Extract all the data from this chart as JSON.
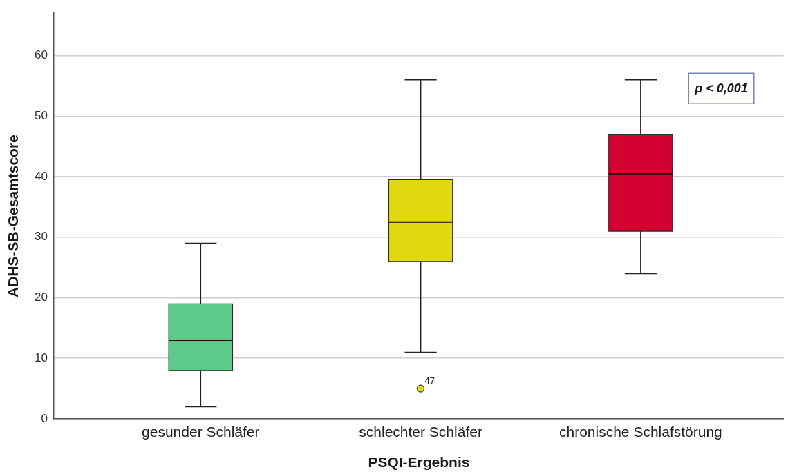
{
  "chart_data": {
    "type": "box",
    "xlabel": "PSQI-Ergebnis",
    "ylabel": "ADHS-SB-Gesamtscore",
    "categories": [
      "gesunder Schläfer",
      "schlechter Schläfer",
      "chronische Schlafstörung"
    ],
    "boxes": [
      {
        "low": 2,
        "q1": 8,
        "median": 13,
        "q3": 19,
        "high": 29
      },
      {
        "low": 11,
        "q1": 26,
        "median": 32.5,
        "q3": 39.5,
        "high": 56,
        "outliers": [
          5
        ]
      },
      {
        "low": 24,
        "q1": 31,
        "median": 40.5,
        "q3": 47,
        "high": 56
      }
    ],
    "colors": [
      "#5ccb8a",
      "#e2d810",
      "#d50032"
    ],
    "ylim": [
      0,
      67
    ],
    "yticks": [
      0,
      10,
      20,
      30,
      40,
      50,
      60
    ],
    "grid": "y",
    "annotations": [
      "p < 0,001",
      "47"
    ]
  }
}
